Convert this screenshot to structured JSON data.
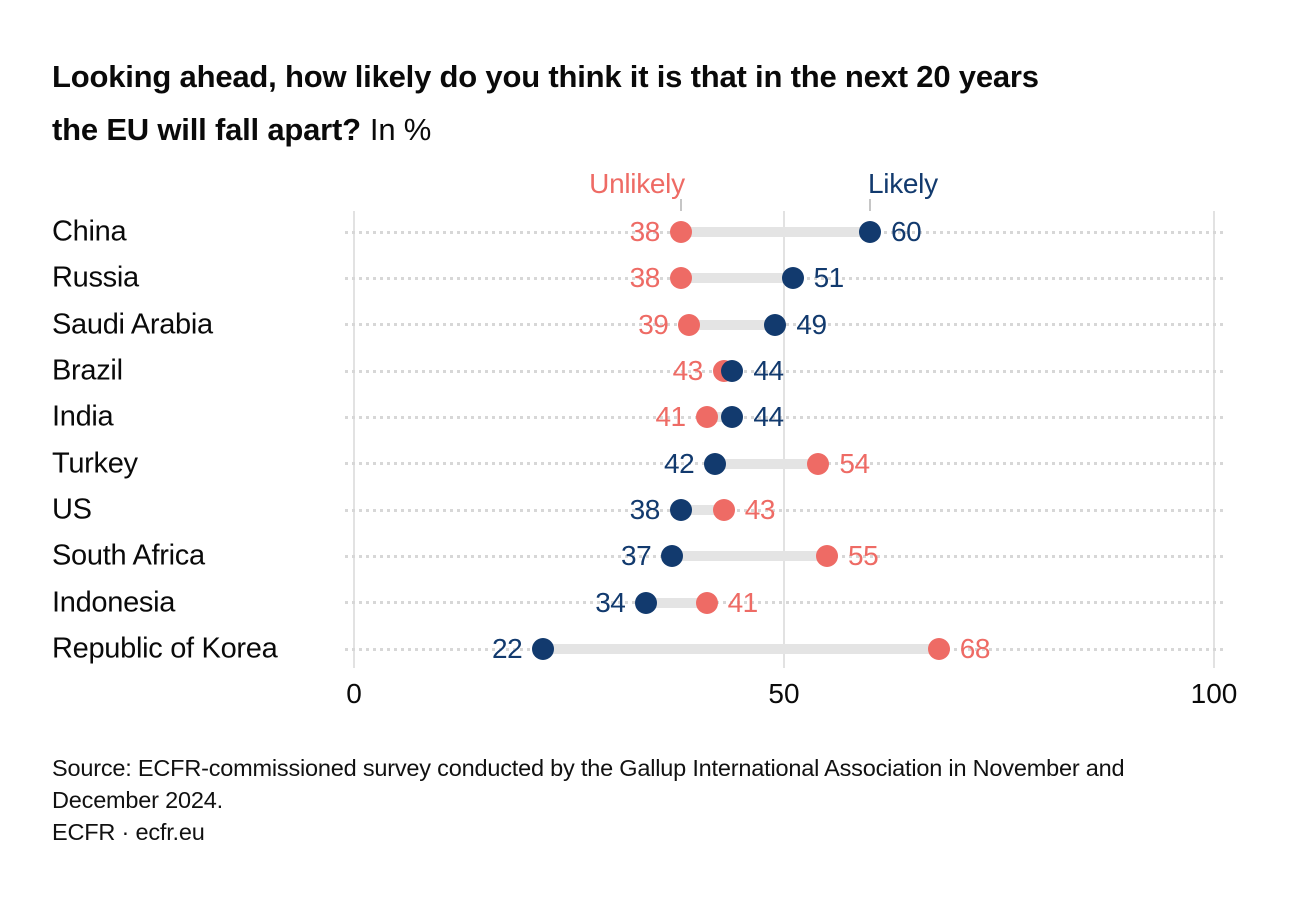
{
  "title": {
    "line1": "Looking ahead, how likely do you think it is that in the next 20 years",
    "line2_bold": "the EU will fall apart?",
    "line2_suffix": "In %"
  },
  "legend": {
    "unlikely": "Unlikely",
    "likely": "Likely"
  },
  "colors": {
    "unlikely": "#ee6b65",
    "likely": "#123a6e",
    "connector": "#e4e4e4",
    "gridline": "#e2e2e2",
    "row_dotted": "#d7d7d7",
    "text": "#0a0a0a"
  },
  "chart_data": {
    "type": "dumbbell",
    "title": "Looking ahead, how likely do you think it is that in the next 20 years the EU will fall apart? In %",
    "categories": [
      "China",
      "Russia",
      "Saudi Arabia",
      "Brazil",
      "India",
      "Turkey",
      "US",
      "South Africa",
      "Indonesia",
      "Republic of Korea"
    ],
    "series": [
      {
        "name": "Unlikely",
        "values": [
          38,
          38,
          39,
          43,
          41,
          54,
          43,
          55,
          41,
          68
        ]
      },
      {
        "name": "Likely",
        "values": [
          60,
          51,
          49,
          44,
          44,
          42,
          38,
          37,
          34,
          22
        ]
      }
    ],
    "xlim": [
      0,
      100
    ],
    "x_ticks": [
      "0",
      "50",
      "100"
    ],
    "x_tick_values": [
      0,
      50,
      100
    ],
    "grid": "dotted-row-lines, solid vertical lines at ticks",
    "legend_position": "top, labels anchored above first row dots"
  },
  "footer": {
    "source": "Source: ECFR-commissioned survey conducted by the Gallup International Association in November and December 2024.",
    "branding": "ECFR · ecfr.eu"
  }
}
